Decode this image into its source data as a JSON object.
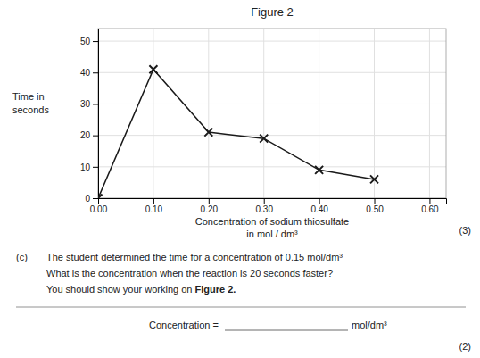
{
  "chart_data": {
    "type": "line",
    "title": "Figure 2",
    "xlabel": [
      "Concentration of sodium thiosulfate",
      "in mol / dm³"
    ],
    "ylabel": [
      "Time in",
      "seconds"
    ],
    "x": [
      0.0,
      0.1,
      0.2,
      0.3,
      0.4,
      0.5
    ],
    "values": [
      0,
      41,
      21,
      19,
      9,
      6
    ],
    "color": "#1a1a1a",
    "marker": "x",
    "xlim": [
      0.0,
      0.63
    ],
    "ylim": [
      0,
      54
    ],
    "xticks": [
      {
        "value": 0.0,
        "label": "0.00"
      },
      {
        "value": 0.1,
        "label": "0.10"
      },
      {
        "value": 0.2,
        "label": "0.20"
      },
      {
        "value": 0.3,
        "label": "0.30"
      },
      {
        "value": 0.4,
        "label": "0.40"
      },
      {
        "value": 0.5,
        "label": "0.50"
      },
      {
        "value": 0.6,
        "label": "0.60"
      }
    ],
    "yticks": [
      0,
      10,
      20,
      30,
      40,
      50
    ],
    "grid": true,
    "annotations": [
      "(3)",
      "(c)",
      "The student determined the time for a concentration of 0.15 mol/dm³",
      "What is the concentration when the reaction is 20 seconds faster?",
      "You should show your working on ",
      "Figure 2.",
      "Concentration = ",
      "mol/dm³",
      "(2)"
    ]
  }
}
